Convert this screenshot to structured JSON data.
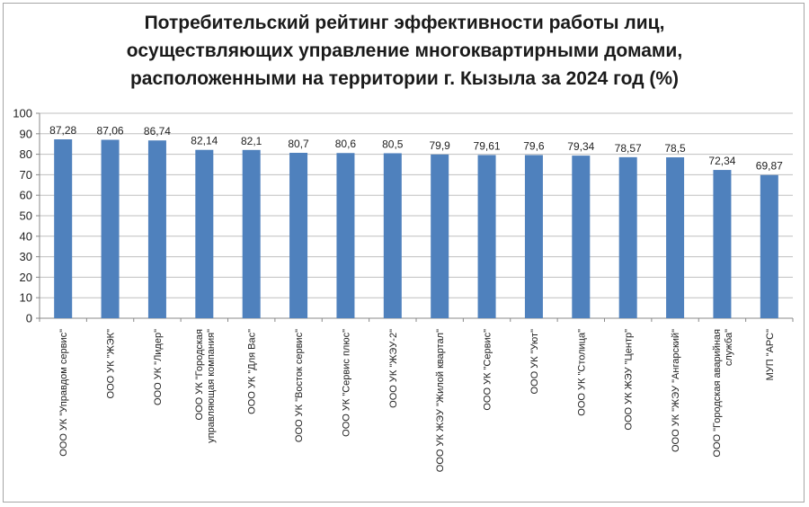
{
  "chart_data": {
    "type": "bar",
    "title_lines": [
      "Потребительский рейтинг эффективности работы лиц,",
      "осуществляющих управление многоквартирными домами,",
      "расположенными на территории г. Кызыла за 2024 год (%)"
    ],
    "xlabel": "",
    "ylabel": "",
    "ylim": [
      0,
      100
    ],
    "yticks": [
      0,
      10,
      20,
      30,
      40,
      50,
      60,
      70,
      80,
      90,
      100
    ],
    "grid": true,
    "legend": "none",
    "categories": [
      [
        "ООО УК \"Управдом сервис\""
      ],
      [
        "ООО УК \"ЖЭК\""
      ],
      [
        "ООО УК \"Лидер\""
      ],
      [
        "ООО УК \"Городская",
        "управляющая компания\""
      ],
      [
        "ООО УК \"Для Вас\""
      ],
      [
        "ООО УК \"Восток сервис\""
      ],
      [
        "ООО УК \"Сервис плюс\""
      ],
      [
        "ООО УК \"ЖЭУ-2\""
      ],
      [
        "ООО УК ЖЭУ \"Жилой квартал\""
      ],
      [
        "ООО УК \"Сервис\""
      ],
      [
        "ООО УК \"Уют\""
      ],
      [
        "ООО УК \"Столица\""
      ],
      [
        "ООО УК ЖЭУ \"Центр\""
      ],
      [
        "ООО УК \"ЖЭУ \"Ангарский\""
      ],
      [
        "ООО \"Городская аварийная",
        "служба\""
      ],
      [
        "МУП \"АРС\""
      ]
    ],
    "values": [
      87.28,
      87.06,
      86.74,
      82.14,
      82.1,
      80.7,
      80.6,
      80.5,
      79.9,
      79.61,
      79.6,
      79.34,
      78.57,
      78.5,
      72.34,
      69.87
    ],
    "value_labels": [
      "87,28",
      "87,06",
      "86,74",
      "82,14",
      "82,1",
      "80,7",
      "80,6",
      "80,5",
      "79,9",
      "79,61",
      "79,6",
      "79,34",
      "78,57",
      "78,5",
      "72,34",
      "69,87"
    ],
    "colors": {
      "bar": "#4f81bd",
      "grid": "#bfbfbf",
      "axis": "#888888",
      "text": "#222222"
    }
  }
}
